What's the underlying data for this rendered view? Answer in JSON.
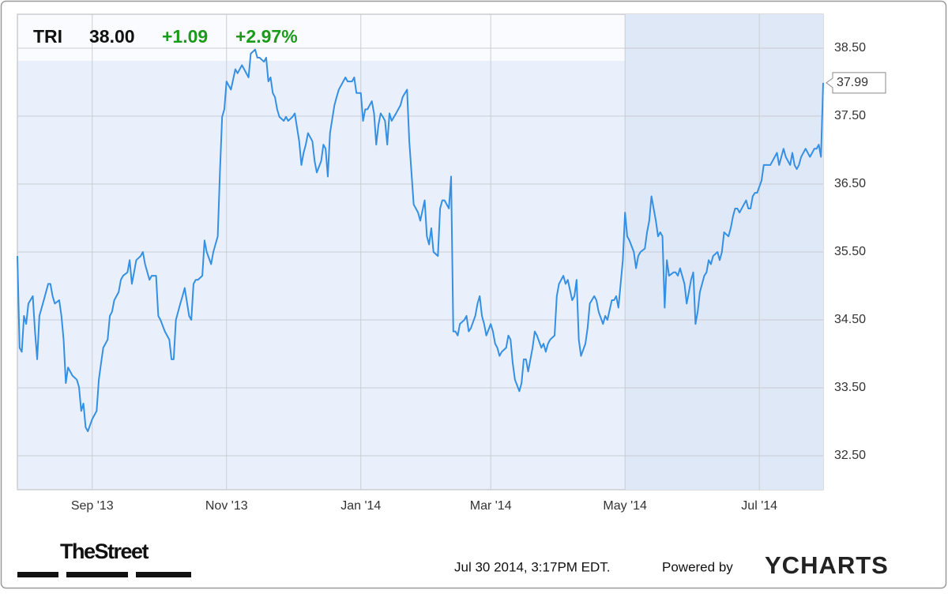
{
  "chart_data": {
    "type": "line",
    "ticker": "TRI",
    "price": "38.00",
    "change": "+1.09",
    "change_percent": "+2.97%",
    "color": "#3590e3",
    "grid": true,
    "xlim": [
      0,
      366
    ],
    "xticks": [
      {
        "value": 34,
        "label": "Sep '13"
      },
      {
        "value": 95,
        "label": "Nov '13"
      },
      {
        "value": 156,
        "label": "Jan '14"
      },
      {
        "value": 215,
        "label": "Mar '14"
      },
      {
        "value": 276,
        "label": "May '14"
      },
      {
        "value": 337,
        "label": "Jul '14"
      }
    ],
    "ylim": [
      32.0,
      39.0
    ],
    "yticks": [
      {
        "value": 32.5,
        "label": "32.50"
      },
      {
        "value": 33.5,
        "label": "33.50"
      },
      {
        "value": 34.5,
        "label": "34.50"
      },
      {
        "value": 35.5,
        "label": "35.50"
      },
      {
        "value": 36.5,
        "label": "36.50"
      },
      {
        "value": 37.5,
        "label": "37.50"
      },
      {
        "value": 38.5,
        "label": "38.50"
      }
    ],
    "x": [
      0,
      1,
      2,
      3,
      4,
      5,
      7,
      8,
      9,
      10,
      12,
      14,
      15,
      16,
      17,
      19,
      20,
      21,
      22,
      23,
      25,
      27,
      28,
      29,
      30,
      31,
      32,
      34,
      36,
      37,
      38,
      39,
      41,
      42,
      43,
      44,
      45,
      46,
      47,
      48,
      50,
      51,
      52,
      53,
      54,
      56,
      57,
      58,
      60,
      61,
      63,
      64,
      65,
      67,
      69,
      70,
      71,
      72,
      74,
      75,
      76,
      78,
      79,
      80,
      81,
      82,
      84,
      85,
      86,
      88,
      89,
      91,
      92,
      93,
      94,
      95,
      96,
      97,
      99,
      100,
      102,
      103,
      105,
      106,
      108,
      109,
      110,
      112,
      113,
      114,
      115,
      116,
      117,
      118,
      119,
      121,
      122,
      123,
      125,
      126,
      128,
      129,
      130,
      131,
      132,
      134,
      135,
      136,
      138,
      139,
      140,
      141,
      142,
      144,
      145,
      146,
      148,
      149,
      150,
      152,
      153,
      154,
      156,
      157,
      158,
      159,
      161,
      162,
      163,
      164,
      165,
      166,
      167,
      168,
      169,
      170,
      172,
      173,
      174,
      175,
      177,
      178,
      179,
      180,
      181,
      182,
      183,
      185,
      186,
      187,
      188,
      189,
      191,
      192,
      193,
      194,
      196,
      197,
      198,
      199,
      200,
      201,
      203,
      204,
      205,
      206,
      208,
      209,
      210,
      211,
      212,
      213,
      215,
      216,
      217,
      218,
      219,
      220,
      222,
      223,
      224,
      225,
      226,
      228,
      229,
      230,
      231,
      232,
      234,
      235,
      236,
      238,
      239,
      240,
      241,
      242,
      244,
      245,
      246,
      248,
      249,
      250,
      252,
      253,
      254,
      255,
      256,
      258,
      259,
      260,
      262,
      263,
      264,
      266,
      267,
      268,
      270,
      271,
      272,
      273,
      275,
      276,
      277,
      278,
      280,
      281,
      282,
      283,
      285,
      286,
      287,
      288,
      290,
      291,
      292,
      293,
      294,
      295,
      296,
      298,
      299,
      300,
      301,
      303,
      304,
      305,
      306,
      307,
      308,
      309,
      310,
      312,
      313,
      314,
      315,
      316,
      318,
      319,
      320,
      321,
      323,
      324,
      325,
      326,
      327,
      328,
      329,
      331,
      332,
      333,
      334,
      335,
      336,
      338,
      339,
      340,
      341,
      342,
      344,
      345,
      346,
      347,
      348,
      349,
      351,
      352,
      353,
      354,
      355,
      356,
      357,
      358,
      360,
      361,
      362,
      363,
      364,
      365,
      366
    ],
    "values": [
      35.44,
      34.09,
      34.03,
      34.56,
      34.44,
      34.74,
      34.85,
      34.33,
      33.92,
      34.56,
      34.79,
      35.03,
      35.03,
      34.85,
      34.74,
      34.79,
      34.56,
      34.21,
      33.57,
      33.8,
      33.68,
      33.62,
      33.51,
      33.16,
      33.27,
      32.92,
      32.86,
      33.04,
      33.16,
      33.62,
      33.86,
      34.09,
      34.21,
      34.56,
      34.62,
      34.79,
      34.85,
      34.91,
      35.09,
      35.15,
      35.2,
      35.38,
      35.03,
      35.2,
      35.38,
      35.44,
      35.5,
      35.32,
      35.09,
      35.15,
      35.15,
      34.56,
      34.5,
      34.33,
      34.21,
      33.92,
      33.92,
      34.5,
      34.74,
      34.85,
      34.97,
      34.56,
      34.5,
      35.03,
      35.09,
      35.09,
      35.15,
      35.67,
      35.5,
      35.32,
      35.5,
      35.73,
      36.67,
      37.49,
      37.6,
      38.01,
      37.95,
      37.89,
      38.19,
      38.13,
      38.25,
      38.19,
      38.07,
      38.42,
      38.48,
      38.36,
      38.36,
      38.3,
      38.36,
      38.01,
      38.07,
      37.84,
      37.78,
      37.6,
      37.49,
      37.43,
      37.49,
      37.43,
      37.49,
      37.54,
      37.13,
      36.78,
      36.96,
      37.08,
      37.25,
      37.13,
      36.84,
      36.67,
      36.84,
      37.08,
      37.02,
      36.61,
      37.25,
      37.66,
      37.78,
      37.89,
      38.01,
      38.07,
      38.01,
      38.01,
      38.07,
      37.84,
      37.84,
      37.43,
      37.6,
      37.6,
      37.72,
      37.54,
      37.08,
      37.37,
      37.54,
      37.49,
      37.43,
      37.08,
      37.54,
      37.43,
      37.54,
      37.6,
      37.66,
      37.78,
      37.89,
      37.13,
      36.67,
      36.2,
      36.14,
      36.08,
      35.96,
      36.26,
      35.73,
      35.61,
      35.85,
      35.5,
      35.44,
      36.14,
      36.26,
      36.26,
      36.14,
      36.61,
      34.33,
      34.33,
      34.27,
      34.44,
      34.5,
      34.56,
      34.33,
      34.38,
      34.56,
      34.74,
      34.85,
      34.56,
      34.44,
      34.27,
      34.44,
      34.33,
      34.15,
      34.09,
      33.97,
      34.03,
      34.09,
      34.27,
      34.21,
      33.86,
      33.62,
      33.45,
      33.57,
      33.92,
      33.92,
      33.74,
      34.09,
      34.33,
      34.27,
      34.09,
      34.15,
      34.03,
      34.15,
      34.21,
      34.27,
      34.85,
      35.03,
      35.15,
      35.03,
      35.09,
      34.79,
      34.85,
      35.09,
      34.21,
      33.97,
      34.15,
      34.38,
      34.74,
      34.85,
      34.79,
      34.62,
      34.44,
      34.56,
      34.5,
      34.79,
      34.79,
      34.85,
      34.68,
      35.38,
      36.08,
      35.73,
      35.67,
      35.5,
      35.26,
      35.44,
      35.5,
      35.55,
      35.79,
      35.96,
      36.32,
      35.96,
      35.73,
      35.79,
      35.73,
      34.68,
      35.38,
      35.15,
      35.2,
      35.2,
      35.15,
      35.26,
      35.03,
      34.74,
      34.91,
      35.09,
      35.2,
      34.44,
      34.62,
      34.91,
      35.15,
      35.2,
      35.38,
      35.32,
      35.44,
      35.5,
      35.38,
      35.5,
      35.79,
      35.73,
      35.85,
      36.02,
      36.14,
      36.14,
      36.08,
      36.14,
      36.26,
      36.14,
      36.14,
      36.32,
      36.37,
      36.37,
      36.55,
      36.78,
      36.78,
      36.78,
      36.78,
      36.9,
      36.96,
      36.78,
      36.9,
      37.02,
      36.9,
      36.78,
      36.96,
      36.78,
      36.72,
      36.78,
      36.9,
      36.96,
      37.02,
      36.9,
      36.96,
      37.02,
      37.02,
      37.08,
      36.9,
      37.99
    ],
    "source": "TheStreet",
    "timestamp": "Jul 30 2014, 3:17PM EDT.",
    "powered_by": "Powered by",
    "brand": "YCHARTS"
  }
}
